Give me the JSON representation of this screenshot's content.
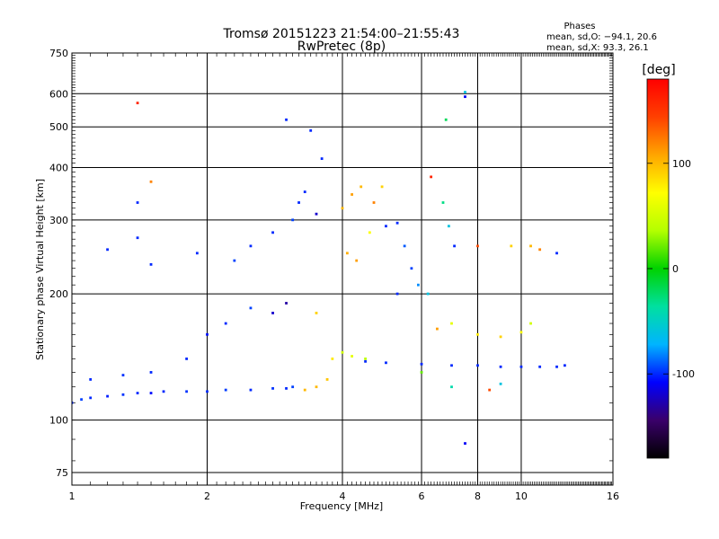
{
  "header": {
    "title": "Tromsø 20151223 21:54:00–21:55:43",
    "subtitle": "RwPretec (8p)",
    "stats_heading": "Phases",
    "stats_line_o": "mean, sd,O: −94.1, 20.6",
    "stats_line_x": "mean, sd,X: 93.3, 26.1"
  },
  "chart_data": {
    "type": "scatter",
    "title": "Tromsø 20151223 21:54:00–21:55:43",
    "subtitle": "RwPretec (8p)",
    "xlabel": "Frequency [MHz]",
    "ylabel": "Stationary phase Virtual Height [km]",
    "x_scale": "log",
    "y_scale": "log",
    "xlim": [
      1,
      16
    ],
    "ylim": [
      70,
      750
    ],
    "x_ticks": [
      1,
      2,
      4,
      6,
      8,
      10,
      16
    ],
    "y_ticks": [
      75,
      100,
      200,
      300,
      400,
      500,
      600,
      750
    ],
    "grid": true,
    "colorbar": {
      "label": "[deg]",
      "range": [
        -180,
        180
      ],
      "ticks": [
        -100,
        0,
        100
      ],
      "colormap": "rainbow",
      "colors": [
        "#000000",
        "#3a006a",
        "#0000ff",
        "#00b4ff",
        "#00e0a0",
        "#00d200",
        "#b4ff00",
        "#ffff00",
        "#ffa500",
        "#ff4000",
        "#ff0000"
      ]
    },
    "series": [
      {
        "points": [
          [
            1.0,
            110,
            -100
          ],
          [
            1.05,
            112,
            -95
          ],
          [
            1.1,
            113,
            -100
          ],
          [
            1.2,
            114,
            -102
          ],
          [
            1.3,
            115,
            -98
          ],
          [
            1.4,
            116,
            -100
          ],
          [
            1.5,
            116,
            -105
          ],
          [
            1.6,
            117,
            -100
          ],
          [
            1.8,
            117,
            -98
          ],
          [
            2.0,
            117,
            -100
          ],
          [
            2.2,
            118,
            -96
          ],
          [
            2.5,
            118,
            -100
          ],
          [
            2.8,
            119,
            -98
          ],
          [
            3.0,
            119,
            -100
          ],
          [
            3.1,
            120,
            -95
          ],
          [
            1.1,
            125,
            -100
          ],
          [
            1.3,
            128,
            -98
          ],
          [
            1.5,
            130,
            -100
          ],
          [
            1.8,
            140,
            -100
          ],
          [
            2.0,
            160,
            -105
          ],
          [
            2.2,
            170,
            -100
          ],
          [
            2.5,
            185,
            -95
          ],
          [
            2.8,
            180,
            -120
          ],
          [
            3.0,
            190,
            -130
          ]
        ]
      },
      {
        "points": [
          [
            3.3,
            118,
            100
          ],
          [
            3.5,
            120,
            100
          ],
          [
            3.7,
            125,
            95
          ],
          [
            3.5,
            180,
            90
          ],
          [
            3.8,
            140,
            80
          ],
          [
            4.0,
            145,
            50
          ],
          [
            4.2,
            142,
            60
          ],
          [
            4.5,
            140,
            40
          ]
        ]
      },
      {
        "points": [
          [
            4.5,
            138,
            -100
          ],
          [
            5.0,
            137,
            -100
          ],
          [
            6.0,
            136,
            -100
          ],
          [
            7.0,
            135,
            -100
          ],
          [
            8.0,
            135,
            -100
          ],
          [
            9.0,
            134,
            -100
          ],
          [
            10.0,
            134,
            -100
          ],
          [
            11.0,
            134,
            -100
          ],
          [
            12.0,
            134,
            -100
          ],
          [
            12.5,
            135,
            -100
          ]
        ]
      },
      {
        "points": [
          [
            1.5,
            235,
            -100
          ],
          [
            1.9,
            250,
            -100
          ],
          [
            2.3,
            240,
            -95
          ],
          [
            2.5,
            260,
            -100
          ],
          [
            2.8,
            280,
            -100
          ],
          [
            3.1,
            300,
            -95
          ],
          [
            3.2,
            330,
            -100
          ],
          [
            3.3,
            350,
            -100
          ],
          [
            3.4,
            490,
            -100
          ],
          [
            3.6,
            420,
            -100
          ],
          [
            3.0,
            520,
            -100
          ],
          [
            3.5,
            310,
            -120
          ]
        ]
      },
      {
        "points": [
          [
            4.0,
            320,
            100
          ],
          [
            4.2,
            345,
            110
          ],
          [
            4.4,
            360,
            100
          ],
          [
            4.7,
            330,
            120
          ],
          [
            4.9,
            360,
            90
          ],
          [
            4.1,
            250,
            105
          ],
          [
            4.3,
            240,
            110
          ],
          [
            4.6,
            280,
            70
          ]
        ]
      },
      {
        "points": [
          [
            5.0,
            290,
            -100
          ],
          [
            5.3,
            295,
            -100
          ],
          [
            5.5,
            260,
            -90
          ],
          [
            5.7,
            230,
            -95
          ],
          [
            5.9,
            210,
            -80
          ],
          [
            6.2,
            200,
            -60
          ],
          [
            5.3,
            200,
            -100
          ]
        ]
      },
      {
        "points": [
          [
            6.3,
            380,
            160
          ],
          [
            6.7,
            330,
            -30
          ],
          [
            7.1,
            260,
            -100
          ],
          [
            6.9,
            290,
            -60
          ],
          [
            8.0,
            260,
            140
          ],
          [
            9.5,
            260,
            90
          ],
          [
            10.5,
            260,
            100
          ],
          [
            11.0,
            255,
            120
          ],
          [
            12.0,
            250,
            -100
          ],
          [
            7.5,
            605,
            -60
          ],
          [
            7.5,
            590,
            -110
          ],
          [
            6.8,
            520,
            -20
          ],
          [
            7.5,
            88,
            -110
          ]
        ]
      },
      {
        "points": [
          [
            1.4,
            570,
            160
          ],
          [
            1.5,
            370,
            120
          ],
          [
            1.4,
            330,
            -100
          ],
          [
            1.4,
            272,
            -100
          ],
          [
            1.2,
            255,
            -100
          ],
          [
            6.5,
            165,
            110
          ],
          [
            7.0,
            170,
            60
          ],
          [
            8.0,
            160,
            80
          ],
          [
            9.0,
            158,
            90
          ],
          [
            10.0,
            162,
            70
          ],
          [
            10.5,
            170,
            50
          ],
          [
            6.0,
            130,
            20
          ],
          [
            7.0,
            120,
            -40
          ],
          [
            8.5,
            118,
            140
          ],
          [
            9.0,
            122,
            -60
          ]
        ]
      }
    ]
  }
}
